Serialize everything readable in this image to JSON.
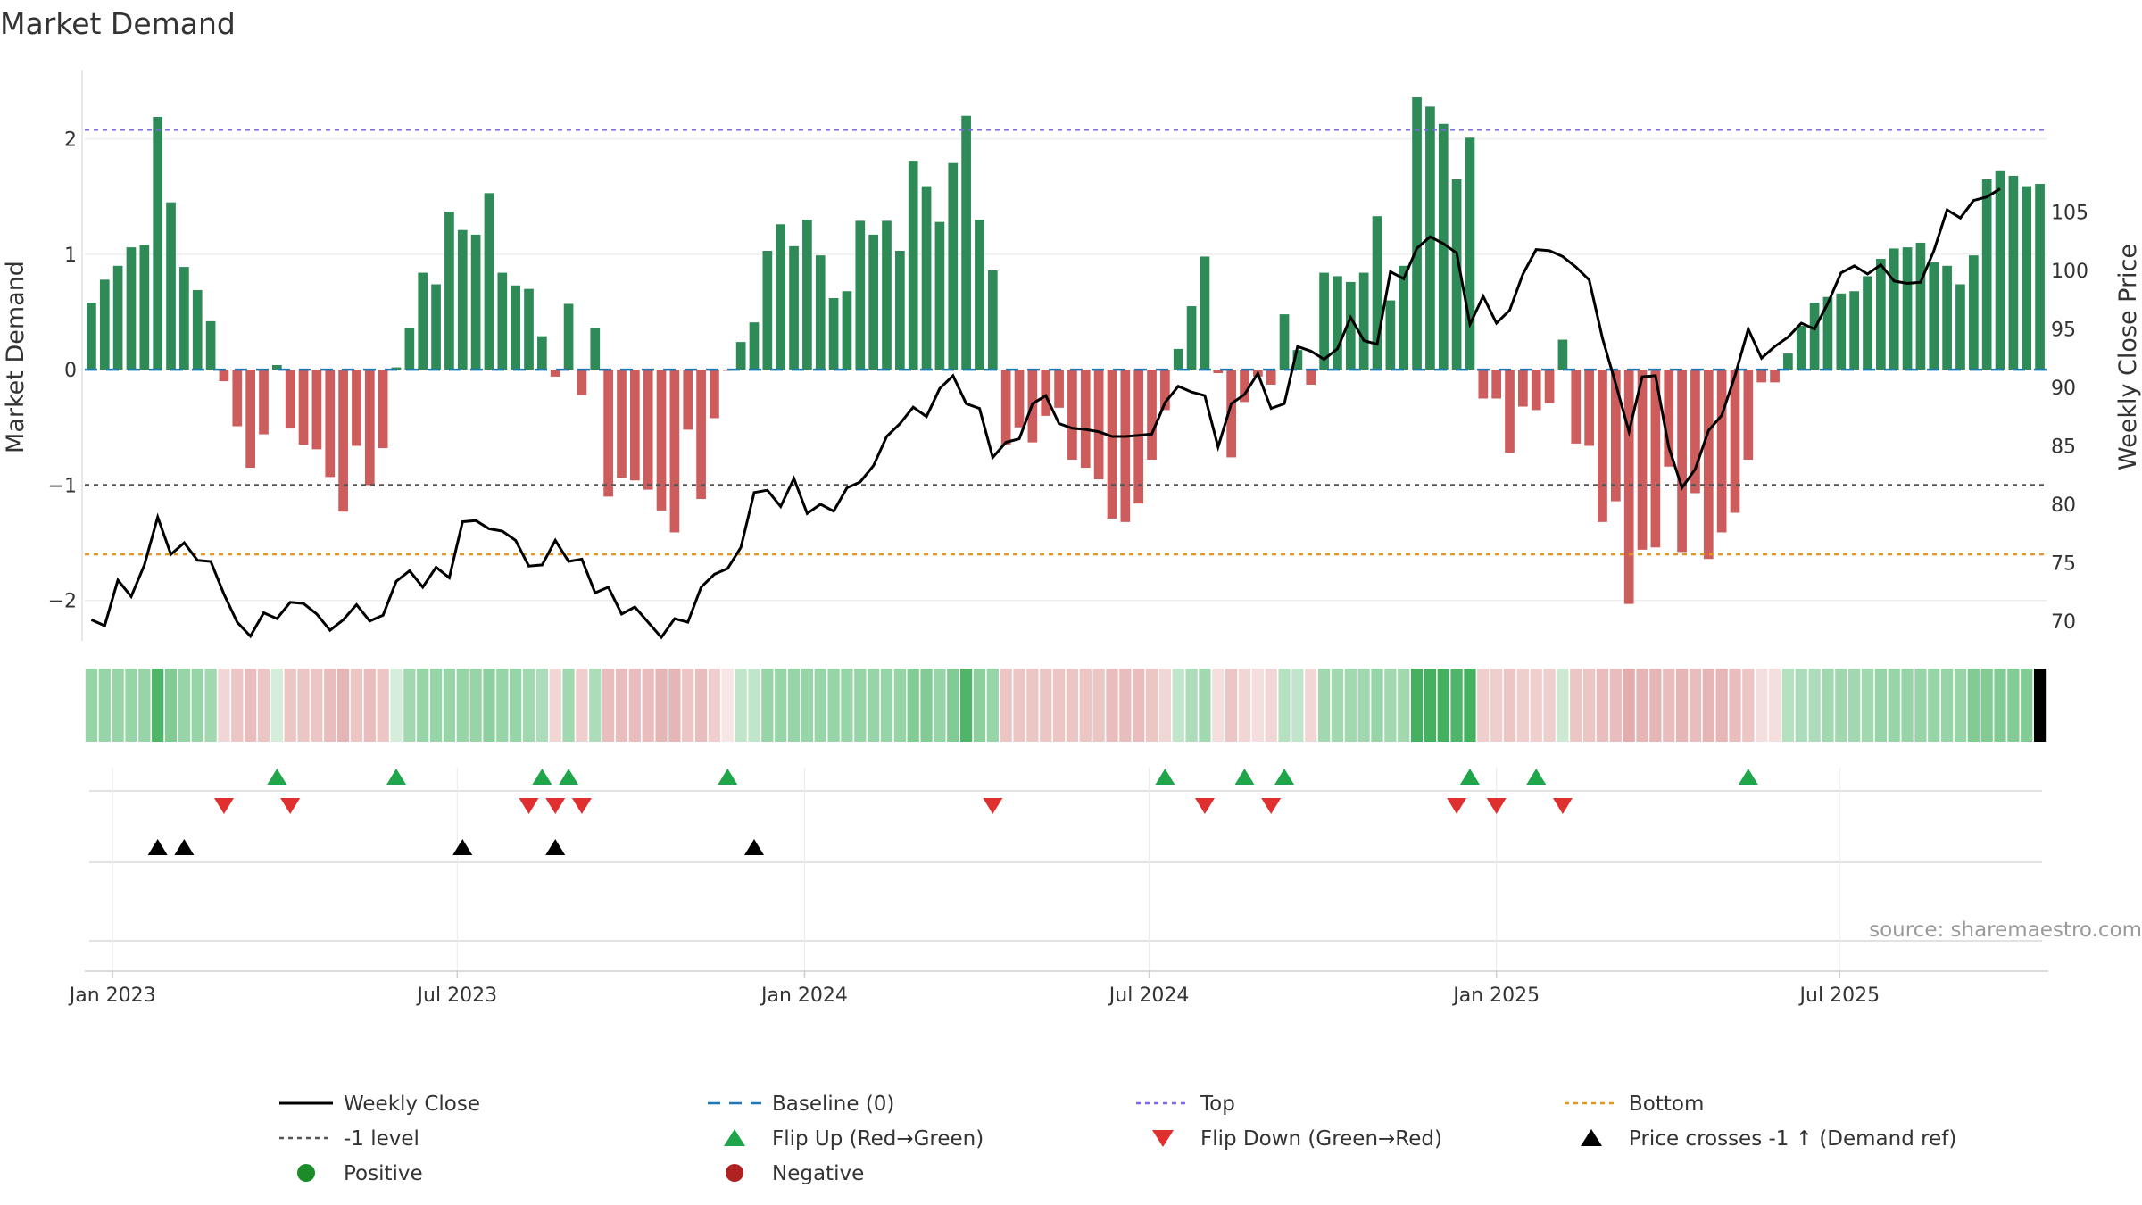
{
  "chart_data": {
    "type": "bar",
    "title": "Market Demand",
    "ylabel": "Market Demand",
    "y2label": "Weekly Close Price",
    "source": "source: sharemaestro.com",
    "ylim": [
      -2.35,
      2.6
    ],
    "y2lim": [
      68.3,
      117.2
    ],
    "yticks": [
      -2,
      -1,
      0,
      1,
      2
    ],
    "ytick_labels": [
      "−2",
      "−1",
      "0",
      "1",
      "2"
    ],
    "y2ticks": [
      70,
      75,
      80,
      85,
      90,
      95,
      100,
      105
    ],
    "y2tick_labels": [
      "70",
      "75",
      "80",
      "85",
      "90",
      "95",
      "100",
      "105"
    ],
    "xticks": [
      {
        "label": "Jan 2023",
        "week": 1.6
      },
      {
        "label": "Jul 2023",
        "week": 27.6
      },
      {
        "label": "Jan 2024",
        "week": 53.8
      },
      {
        "label": "Jul 2024",
        "week": 79.8
      },
      {
        "label": "Jan 2025",
        "week": 106.0
      },
      {
        "label": "Jul 2025",
        "week": 131.9
      }
    ],
    "levels": {
      "top": 2.08,
      "minus_one": -1.0,
      "bottom": -1.6,
      "baseline": 0
    },
    "demand": [
      0.58,
      0.78,
      0.9,
      1.06,
      1.08,
      2.19,
      1.45,
      0.89,
      0.69,
      0.42,
      -0.1,
      -0.49,
      -0.85,
      -0.56,
      0.04,
      -0.51,
      -0.65,
      -0.69,
      -0.93,
      -1.23,
      -0.66,
      -1.0,
      -0.68,
      0.02,
      0.36,
      0.84,
      0.74,
      1.37,
      1.21,
      1.17,
      1.53,
      0.84,
      0.73,
      0.7,
      0.29,
      -0.06,
      0.57,
      -0.22,
      0.36,
      -1.1,
      -0.94,
      -0.96,
      -1.04,
      -1.22,
      -1.41,
      -0.52,
      -1.12,
      -0.42,
      -0.01,
      0.24,
      0.41,
      1.03,
      1.26,
      1.07,
      1.3,
      0.99,
      0.62,
      0.68,
      1.29,
      1.17,
      1.29,
      1.03,
      1.81,
      1.59,
      1.28,
      1.79,
      2.2,
      1.3,
      0.86,
      -0.65,
      -0.5,
      -0.63,
      -0.4,
      -0.33,
      -0.78,
      -0.85,
      -0.95,
      -1.29,
      -1.32,
      -1.16,
      -0.78,
      -0.35,
      0.18,
      0.55,
      0.98,
      -0.03,
      -0.76,
      -0.28,
      -0.06,
      -0.13,
      0.48,
      0.17,
      -0.13,
      0.84,
      0.81,
      0.76,
      0.84,
      1.33,
      0.6,
      0.9,
      2.36,
      2.28,
      2.13,
      1.65,
      2.01,
      -0.25,
      -0.25,
      -0.72,
      -0.32,
      -0.35,
      -0.29,
      0.26,
      -0.64,
      -0.66,
      -1.32,
      -1.14,
      -2.03,
      -1.56,
      -1.54,
      -0.84,
      -1.58,
      -1.07,
      -1.64,
      -1.41,
      -1.24,
      -0.78,
      -0.11,
      -0.11,
      0.14,
      0.38,
      0.58,
      0.63,
      0.66,
      0.68,
      0.81,
      0.96,
      1.05,
      1.06,
      1.1,
      0.93,
      0.9,
      0.74,
      0.99,
      1.65,
      1.72,
      1.68,
      1.59,
      1.61
    ],
    "close": [
      70.1,
      69.6,
      73.5,
      72.1,
      74.8,
      78.9,
      75.7,
      76.7,
      75.2,
      75.1,
      72.3,
      69.9,
      68.7,
      70.7,
      70.2,
      71.6,
      71.5,
      70.6,
      69.2,
      70.1,
      71.4,
      70.0,
      70.5,
      73.4,
      74.3,
      72.9,
      74.6,
      73.7,
      78.5,
      78.6,
      77.9,
      77.7,
      76.9,
      74.7,
      74.8,
      76.9,
      75.1,
      75.3,
      72.4,
      72.9,
      70.6,
      71.2,
      69.9,
      68.6,
      70.2,
      69.9,
      72.9,
      74.0,
      74.5,
      76.3,
      81.0,
      81.2,
      79.8,
      82.2,
      79.2,
      80.0,
      79.4,
      81.4,
      81.9,
      83.3,
      85.8,
      86.9,
      88.3,
      87.5,
      89.9,
      91.0,
      88.6,
      88.2,
      84.0,
      85.3,
      85.6,
      88.6,
      89.3,
      86.9,
      86.5,
      86.4,
      86.2,
      85.8,
      85.8,
      85.9,
      86.0,
      88.7,
      90.1,
      89.6,
      89.3,
      84.9,
      88.6,
      89.4,
      91.2,
      88.2,
      88.6,
      93.5,
      93.1,
      92.4,
      93.3,
      96.0,
      94.0,
      93.7,
      99.9,
      99.3,
      101.9,
      102.9,
      102.3,
      101.5,
      95.4,
      97.8,
      95.5,
      96.6,
      99.7,
      101.8,
      101.7,
      101.2,
      100.3,
      99.2,
      94.2,
      90.3,
      86.2,
      90.9,
      91.0,
      84.9,
      81.4,
      83.0,
      86.3,
      87.6,
      91.0,
      95.0,
      92.5,
      93.5,
      94.3,
      95.5,
      95.0,
      97.2,
      99.8,
      100.4,
      99.7,
      100.5,
      99.1,
      98.9,
      99.0,
      101.7,
      105.2,
      104.5,
      106.0,
      106.3,
      107.0
    ],
    "shading_strength": [
      0.5,
      0.5,
      0.5,
      0.5,
      0.5,
      0.85,
      0.6,
      0.5,
      0.5,
      0.45,
      0.25,
      0.35,
      0.4,
      0.35,
      0.2,
      0.35,
      0.35,
      0.35,
      0.4,
      0.45,
      0.35,
      0.4,
      0.35,
      0.2,
      0.45,
      0.5,
      0.5,
      0.5,
      0.5,
      0.5,
      0.55,
      0.5,
      0.5,
      0.45,
      0.4,
      0.25,
      0.45,
      0.3,
      0.4,
      0.4,
      0.4,
      0.4,
      0.4,
      0.45,
      0.45,
      0.35,
      0.4,
      0.3,
      0.15,
      0.3,
      0.3,
      0.5,
      0.5,
      0.5,
      0.5,
      0.5,
      0.5,
      0.5,
      0.5,
      0.5,
      0.5,
      0.5,
      0.6,
      0.6,
      0.5,
      0.6,
      0.85,
      0.55,
      0.5,
      0.35,
      0.35,
      0.35,
      0.35,
      0.35,
      0.35,
      0.35,
      0.35,
      0.4,
      0.4,
      0.4,
      0.35,
      0.25,
      0.3,
      0.4,
      0.45,
      0.2,
      0.35,
      0.25,
      0.2,
      0.25,
      0.35,
      0.3,
      0.25,
      0.45,
      0.45,
      0.45,
      0.45,
      0.5,
      0.45,
      0.45,
      0.9,
      0.9,
      0.9,
      0.85,
      0.9,
      0.3,
      0.3,
      0.35,
      0.3,
      0.3,
      0.3,
      0.25,
      0.35,
      0.35,
      0.4,
      0.4,
      0.5,
      0.45,
      0.45,
      0.4,
      0.45,
      0.4,
      0.45,
      0.45,
      0.4,
      0.35,
      0.2,
      0.2,
      0.35,
      0.4,
      0.4,
      0.45,
      0.45,
      0.45,
      0.45,
      0.5,
      0.5,
      0.5,
      0.5,
      0.5,
      0.5,
      0.5,
      0.6,
      0.6,
      0.6,
      0.6,
      0.6
    ],
    "flip_up_weeks": [
      14,
      23,
      34,
      36,
      48,
      81,
      87,
      90,
      104,
      109,
      125
    ],
    "flip_down_weeks": [
      10,
      15,
      33,
      35,
      37,
      68,
      84,
      89,
      103,
      106,
      111
    ],
    "price_cross_weeks": [
      5,
      7,
      28,
      35,
      50
    ],
    "legend": [
      {
        "label": "Weekly Close",
        "kind": "line"
      },
      {
        "label": "Baseline (0)",
        "kind": "dash-blue"
      },
      {
        "label": "Top",
        "kind": "dot-purple"
      },
      {
        "label": "Bottom",
        "kind": "dot-orange"
      },
      {
        "label": "-1 level",
        "kind": "dot-grey"
      },
      {
        "label": "Flip Up (Red→Green)",
        "kind": "tri-up-green"
      },
      {
        "label": "Flip Down (Green→Red)",
        "kind": "tri-down-red"
      },
      {
        "label": "Price crosses -1 ↑ (Demand ref)",
        "kind": "tri-up-black"
      },
      {
        "label": "Positive",
        "kind": "dot-green"
      },
      {
        "label": "Negative",
        "kind": "dot-red"
      }
    ],
    "colors": {
      "positive": "#2e8b57",
      "negative": "#cd5c5c",
      "close": "#000000",
      "baseline": "#1f77b4",
      "top": "#7b68ee",
      "bottom": "#e69520",
      "minus_one": "#555555",
      "flip_up": "#1fa64a",
      "flip_down": "#e02f2f",
      "cross": "#000000",
      "legend_positive": "#1c8c2b",
      "legend_negative": "#b02222"
    }
  }
}
